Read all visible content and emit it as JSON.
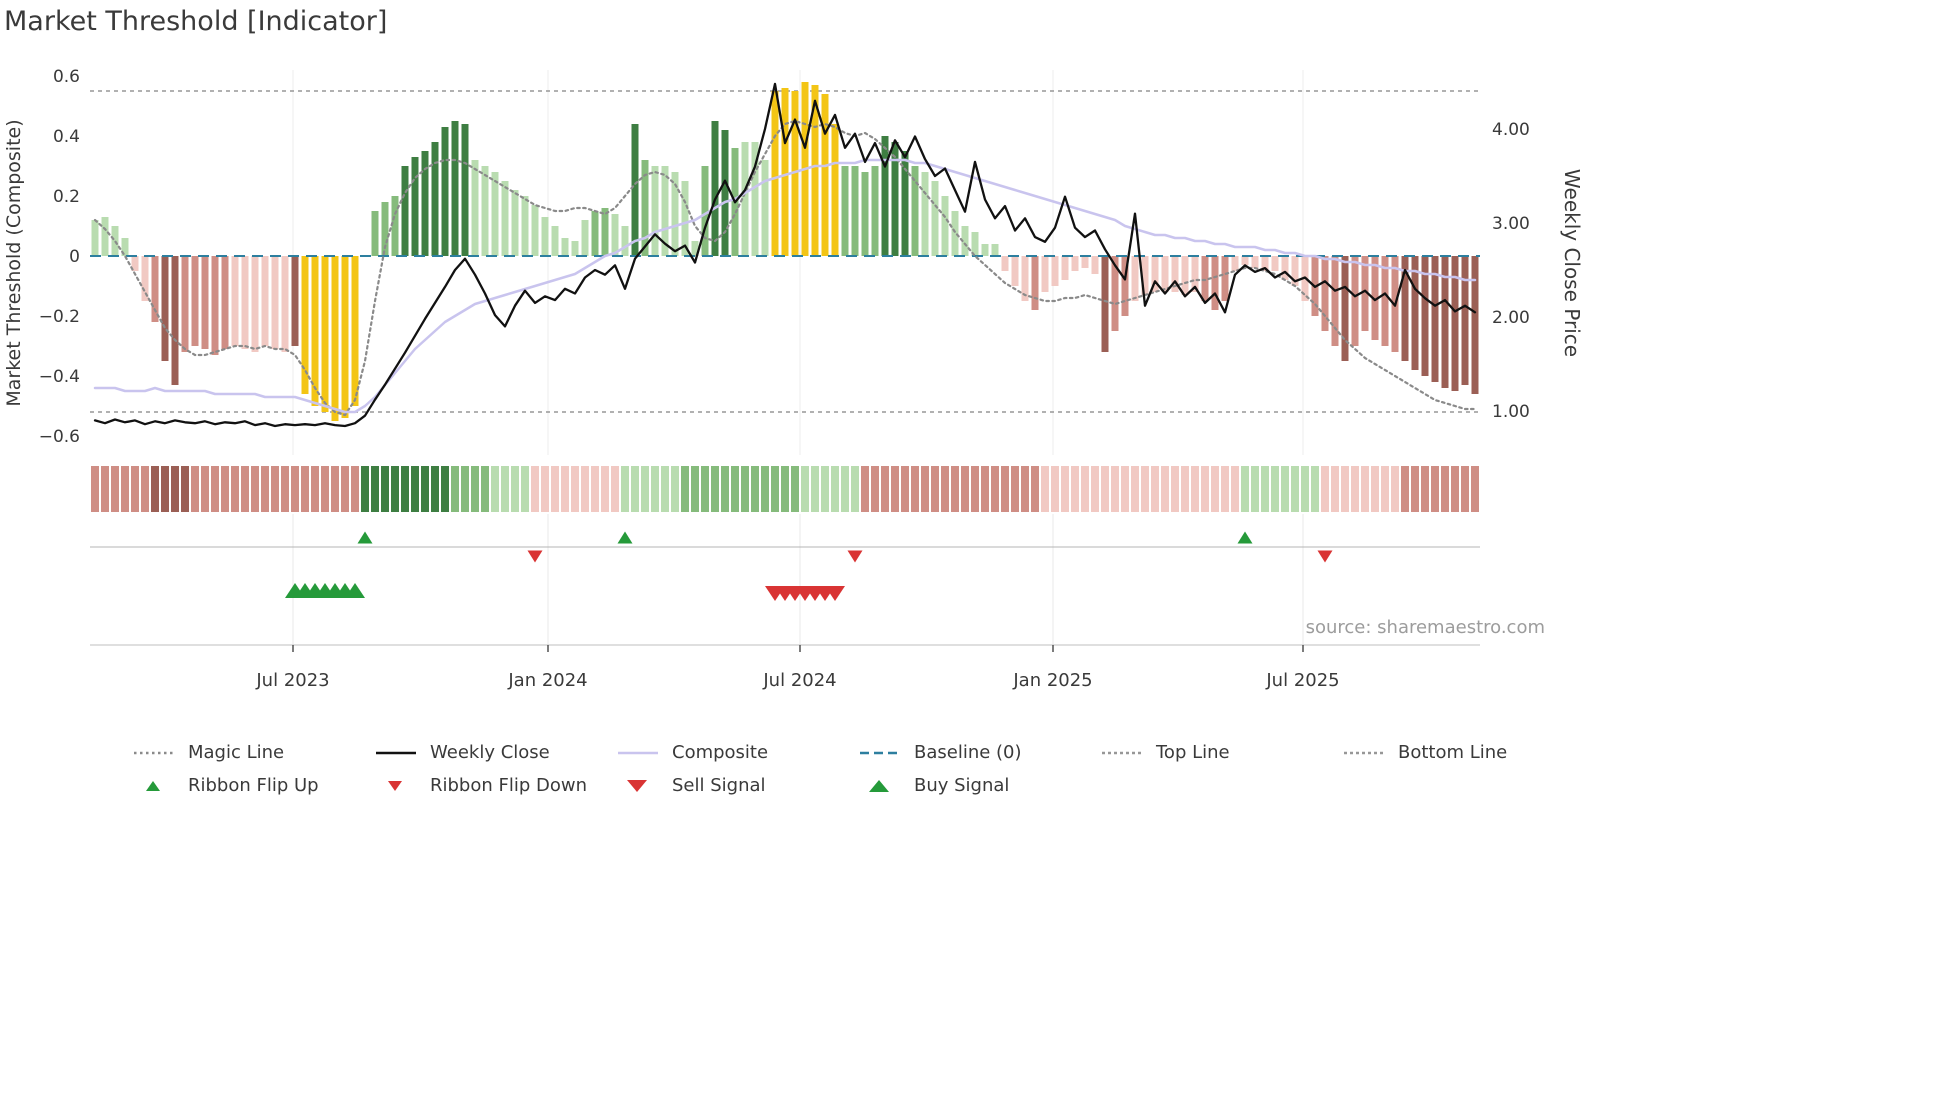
{
  "title": "Market Threshold [Indicator]",
  "source": "source: sharemaestro.com",
  "axes": {
    "left_label": "Market Threshold (Composite)",
    "right_label": "Weekly Close Price",
    "left_ticks": [
      {
        "label": "0.6",
        "value": 0.6
      },
      {
        "label": "0.4",
        "value": 0.4
      },
      {
        "label": "0.2",
        "value": 0.2
      },
      {
        "label": "0",
        "value": 0
      },
      {
        "label": "−0.2",
        "value": -0.2
      },
      {
        "label": "−0.4",
        "value": -0.4
      },
      {
        "label": "−0.6",
        "value": -0.6
      }
    ],
    "right_ticks": [
      {
        "label": "4.00",
        "value": 4.0
      },
      {
        "label": "3.00",
        "value": 3.0
      },
      {
        "label": "2.00",
        "value": 2.0
      },
      {
        "label": "1.00",
        "value": 1.0
      }
    ],
    "x_ticks": [
      {
        "label": "Jul 2023",
        "week": 19.8
      },
      {
        "label": "Jan 2024",
        "week": 45.3
      },
      {
        "label": "Jul 2024",
        "week": 70.5
      },
      {
        "label": "Jan 2025",
        "week": 95.8
      },
      {
        "label": "Jul 2025",
        "week": 120.8
      }
    ]
  },
  "chart_data": {
    "type": "bar",
    "subtype": "combo-bar-line-weekly",
    "x_unit": "week",
    "left_axis_range": [
      -0.6,
      0.6
    ],
    "right_axis_range": [
      0.8,
      4.6
    ],
    "reference_lines": {
      "baseline": 0,
      "top": 0.55,
      "bottom": -0.52
    },
    "palette": {
      "g3": "#3e7e42",
      "g2": "#86bb7c",
      "g1": "#b9dcb0",
      "r3": "#9b5f55",
      "r2": "#cf8e85",
      "r1": "#f1c9c3",
      "y": "#f3c515",
      "n": "none"
    },
    "line_colors": {
      "baseline": "#2d7f9f",
      "top_bottom": "#979797",
      "grid": "#ececec"
    },
    "signal_colors": {
      "up": "#259a3a",
      "down": "#d93434"
    },
    "bars_name": "Market Threshold (Composite)",
    "bars": [
      [
        0.12,
        "g1"
      ],
      [
        0.13,
        "g1"
      ],
      [
        0.1,
        "g1"
      ],
      [
        0.06,
        "g1"
      ],
      [
        -0.05,
        "r1"
      ],
      [
        -0.15,
        "r1"
      ],
      [
        -0.22,
        "r2"
      ],
      [
        -0.35,
        "r3"
      ],
      [
        -0.43,
        "r3"
      ],
      [
        -0.32,
        "r2"
      ],
      [
        -0.3,
        "r2"
      ],
      [
        -0.31,
        "r2"
      ],
      [
        -0.33,
        "r2"
      ],
      [
        -0.31,
        "r2"
      ],
      [
        -0.3,
        "r1"
      ],
      [
        -0.31,
        "r1"
      ],
      [
        -0.32,
        "r1"
      ],
      [
        -0.3,
        "r1"
      ],
      [
        -0.31,
        "r1"
      ],
      [
        -0.32,
        "r1"
      ],
      [
        -0.3,
        "r3"
      ],
      [
        -0.46,
        "y"
      ],
      [
        -0.5,
        "y"
      ],
      [
        -0.52,
        "y"
      ],
      [
        -0.55,
        "y"
      ],
      [
        -0.54,
        "y"
      ],
      [
        -0.5,
        "y"
      ],
      [
        0,
        "n"
      ],
      [
        0.15,
        "g2"
      ],
      [
        0.18,
        "g2"
      ],
      [
        0.2,
        "g2"
      ],
      [
        0.3,
        "g3"
      ],
      [
        0.33,
        "g3"
      ],
      [
        0.35,
        "g3"
      ],
      [
        0.38,
        "g3"
      ],
      [
        0.43,
        "g3"
      ],
      [
        0.45,
        "g3"
      ],
      [
        0.44,
        "g3"
      ],
      [
        0.32,
        "g1"
      ],
      [
        0.3,
        "g1"
      ],
      [
        0.28,
        "g1"
      ],
      [
        0.25,
        "g1"
      ],
      [
        0.22,
        "g1"
      ],
      [
        0.2,
        "g1"
      ],
      [
        0.17,
        "g1"
      ],
      [
        0.13,
        "g1"
      ],
      [
        0.1,
        "g1"
      ],
      [
        0.06,
        "g1"
      ],
      [
        0.05,
        "g1"
      ],
      [
        0.12,
        "g1"
      ],
      [
        0.15,
        "g2"
      ],
      [
        0.16,
        "g2"
      ],
      [
        0.14,
        "g1"
      ],
      [
        0.1,
        "g1"
      ],
      [
        0.44,
        "g3"
      ],
      [
        0.32,
        "g2"
      ],
      [
        0.3,
        "g1"
      ],
      [
        0.3,
        "g1"
      ],
      [
        0.28,
        "g1"
      ],
      [
        0.25,
        "g1"
      ],
      [
        0.05,
        "g1"
      ],
      [
        0.3,
        "g2"
      ],
      [
        0.45,
        "g3"
      ],
      [
        0.42,
        "g3"
      ],
      [
        0.36,
        "g2"
      ],
      [
        0.38,
        "g1"
      ],
      [
        0.38,
        "g1"
      ],
      [
        0.32,
        "g1"
      ],
      [
        0.55,
        "y"
      ],
      [
        0.56,
        "y"
      ],
      [
        0.55,
        "y"
      ],
      [
        0.58,
        "y"
      ],
      [
        0.57,
        "y"
      ],
      [
        0.54,
        "y"
      ],
      [
        0.44,
        "y"
      ],
      [
        0.3,
        "g2"
      ],
      [
        0.3,
        "g2"
      ],
      [
        0.28,
        "g2"
      ],
      [
        0.3,
        "g2"
      ],
      [
        0.4,
        "g3"
      ],
      [
        0.38,
        "g3"
      ],
      [
        0.35,
        "g3"
      ],
      [
        0.3,
        "g2"
      ],
      [
        0.28,
        "g1"
      ],
      [
        0.25,
        "g1"
      ],
      [
        0.2,
        "g1"
      ],
      [
        0.15,
        "g1"
      ],
      [
        0.1,
        "g1"
      ],
      [
        0.08,
        "g1"
      ],
      [
        0.04,
        "g1"
      ],
      [
        0.04,
        "g1"
      ],
      [
        -0.05,
        "r1"
      ],
      [
        -0.1,
        "r1"
      ],
      [
        -0.15,
        "r1"
      ],
      [
        -0.18,
        "r2"
      ],
      [
        -0.12,
        "r1"
      ],
      [
        -0.1,
        "r1"
      ],
      [
        -0.08,
        "r1"
      ],
      [
        -0.05,
        "r1"
      ],
      [
        -0.04,
        "r1"
      ],
      [
        -0.06,
        "r1"
      ],
      [
        -0.32,
        "r3"
      ],
      [
        -0.25,
        "r2"
      ],
      [
        -0.2,
        "r2"
      ],
      [
        -0.15,
        "r1"
      ],
      [
        -0.13,
        "r1"
      ],
      [
        -0.12,
        "r1"
      ],
      [
        -0.12,
        "r1"
      ],
      [
        -0.12,
        "r1"
      ],
      [
        -0.13,
        "r1"
      ],
      [
        -0.12,
        "r1"
      ],
      [
        -0.15,
        "r2"
      ],
      [
        -0.18,
        "r2"
      ],
      [
        -0.15,
        "r2"
      ],
      [
        -0.05,
        "r1"
      ],
      [
        -0.03,
        "r1"
      ],
      [
        -0.04,
        "r1"
      ],
      [
        -0.05,
        "r1"
      ],
      [
        -0.05,
        "r1"
      ],
      [
        -0.08,
        "r1"
      ],
      [
        -0.1,
        "r1"
      ],
      [
        -0.15,
        "r1"
      ],
      [
        -0.2,
        "r2"
      ],
      [
        -0.25,
        "r2"
      ],
      [
        -0.3,
        "r2"
      ],
      [
        -0.35,
        "r3"
      ],
      [
        -0.3,
        "r2"
      ],
      [
        -0.25,
        "r2"
      ],
      [
        -0.28,
        "r2"
      ],
      [
        -0.3,
        "r2"
      ],
      [
        -0.32,
        "r2"
      ],
      [
        -0.35,
        "r3"
      ],
      [
        -0.38,
        "r3"
      ],
      [
        -0.4,
        "r3"
      ],
      [
        -0.42,
        "r3"
      ],
      [
        -0.44,
        "r3"
      ],
      [
        -0.45,
        "r3"
      ],
      [
        -0.43,
        "r3"
      ],
      [
        -0.46,
        "r3"
      ]
    ],
    "series": [
      {
        "name": "Magic Line",
        "axis": "left",
        "style": "dotted",
        "color": "#8a8a8a",
        "width": 2.2,
        "values": [
          0.12,
          0.09,
          0.05,
          0.0,
          -0.06,
          -0.12,
          -0.18,
          -0.24,
          -0.28,
          -0.31,
          -0.33,
          -0.33,
          -0.32,
          -0.31,
          -0.3,
          -0.3,
          -0.31,
          -0.3,
          -0.31,
          -0.31,
          -0.33,
          -0.38,
          -0.44,
          -0.49,
          -0.52,
          -0.53,
          -0.48,
          -0.35,
          -0.15,
          0.03,
          0.14,
          0.21,
          0.26,
          0.29,
          0.31,
          0.32,
          0.32,
          0.31,
          0.29,
          0.27,
          0.25,
          0.23,
          0.21,
          0.19,
          0.17,
          0.16,
          0.15,
          0.15,
          0.16,
          0.16,
          0.15,
          0.14,
          0.16,
          0.2,
          0.24,
          0.27,
          0.28,
          0.27,
          0.24,
          0.18,
          0.1,
          0.06,
          0.05,
          0.08,
          0.14,
          0.21,
          0.28,
          0.34,
          0.4,
          0.44,
          0.45,
          0.44,
          0.43,
          0.44,
          0.43,
          0.41,
          0.4,
          0.41,
          0.39,
          0.36,
          0.33,
          0.29,
          0.25,
          0.21,
          0.17,
          0.13,
          0.08,
          0.04,
          0.0,
          -0.03,
          -0.06,
          -0.09,
          -0.11,
          -0.13,
          -0.14,
          -0.15,
          -0.15,
          -0.14,
          -0.14,
          -0.13,
          -0.14,
          -0.15,
          -0.16,
          -0.15,
          -0.14,
          -0.13,
          -0.12,
          -0.11,
          -0.1,
          -0.09,
          -0.08,
          -0.08,
          -0.07,
          -0.06,
          -0.05,
          -0.04,
          -0.04,
          -0.05,
          -0.06,
          -0.08,
          -0.1,
          -0.13,
          -0.16,
          -0.2,
          -0.24,
          -0.28,
          -0.31,
          -0.34,
          -0.36,
          -0.38,
          -0.4,
          -0.42,
          -0.44,
          -0.46,
          -0.48,
          -0.49,
          -0.5,
          -0.51,
          -0.51
        ]
      },
      {
        "name": "Composite",
        "axis": "left",
        "style": "solid",
        "color": "#c9c4ee",
        "width": 2.5,
        "values": [
          -0.44,
          -0.44,
          -0.44,
          -0.45,
          -0.45,
          -0.45,
          -0.44,
          -0.45,
          -0.45,
          -0.45,
          -0.45,
          -0.45,
          -0.46,
          -0.46,
          -0.46,
          -0.46,
          -0.46,
          -0.47,
          -0.47,
          -0.47,
          -0.47,
          -0.48,
          -0.49,
          -0.5,
          -0.51,
          -0.52,
          -0.52,
          -0.5,
          -0.47,
          -0.43,
          -0.39,
          -0.35,
          -0.31,
          -0.28,
          -0.25,
          -0.22,
          -0.2,
          -0.18,
          -0.16,
          -0.15,
          -0.14,
          -0.13,
          -0.12,
          -0.11,
          -0.1,
          -0.09,
          -0.08,
          -0.07,
          -0.06,
          -0.04,
          -0.02,
          0.0,
          0.01,
          0.03,
          0.05,
          0.06,
          0.08,
          0.09,
          0.1,
          0.11,
          0.12,
          0.14,
          0.16,
          0.18,
          0.19,
          0.21,
          0.23,
          0.25,
          0.26,
          0.27,
          0.28,
          0.29,
          0.3,
          0.3,
          0.31,
          0.31,
          0.31,
          0.32,
          0.32,
          0.32,
          0.32,
          0.32,
          0.31,
          0.31,
          0.3,
          0.29,
          0.28,
          0.27,
          0.26,
          0.25,
          0.24,
          0.23,
          0.22,
          0.21,
          0.2,
          0.19,
          0.18,
          0.17,
          0.16,
          0.15,
          0.14,
          0.13,
          0.12,
          0.1,
          0.09,
          0.08,
          0.07,
          0.07,
          0.06,
          0.06,
          0.05,
          0.05,
          0.04,
          0.04,
          0.03,
          0.03,
          0.03,
          0.02,
          0.02,
          0.01,
          0.01,
          0.0,
          0.0,
          -0.01,
          -0.01,
          -0.02,
          -0.02,
          -0.03,
          -0.03,
          -0.04,
          -0.04,
          -0.05,
          -0.05,
          -0.06,
          -0.06,
          -0.07,
          -0.07,
          -0.08,
          -0.08
        ]
      },
      {
        "name": "Weekly Close",
        "axis": "right",
        "style": "solid",
        "color": "#111111",
        "width": 2.3,
        "values": [
          0.9,
          0.87,
          0.91,
          0.88,
          0.9,
          0.86,
          0.89,
          0.87,
          0.9,
          0.88,
          0.87,
          0.89,
          0.86,
          0.88,
          0.87,
          0.89,
          0.85,
          0.87,
          0.84,
          0.86,
          0.85,
          0.86,
          0.85,
          0.87,
          0.85,
          0.84,
          0.87,
          0.95,
          1.12,
          1.28,
          1.45,
          1.62,
          1.8,
          1.98,
          2.15,
          2.32,
          2.5,
          2.62,
          2.45,
          2.25,
          2.02,
          1.9,
          2.12,
          2.28,
          2.15,
          2.22,
          2.18,
          2.3,
          2.25,
          2.42,
          2.5,
          2.45,
          2.55,
          2.3,
          2.62,
          2.75,
          2.88,
          2.78,
          2.7,
          2.76,
          2.58,
          2.95,
          3.25,
          3.45,
          3.22,
          3.35,
          3.6,
          4.0,
          4.48,
          3.85,
          4.1,
          3.8,
          4.3,
          3.95,
          4.15,
          3.8,
          3.95,
          3.65,
          3.85,
          3.6,
          3.88,
          3.7,
          3.92,
          3.68,
          3.5,
          3.58,
          3.35,
          3.12,
          3.65,
          3.25,
          3.05,
          3.18,
          2.92,
          3.05,
          2.85,
          2.8,
          2.95,
          3.28,
          2.95,
          2.85,
          2.92,
          2.72,
          2.55,
          2.4,
          3.1,
          2.12,
          2.38,
          2.25,
          2.38,
          2.22,
          2.32,
          2.15,
          2.25,
          2.05,
          2.45,
          2.55,
          2.48,
          2.52,
          2.42,
          2.48,
          2.38,
          2.42,
          2.32,
          2.38,
          2.28,
          2.32,
          2.22,
          2.28,
          2.18,
          2.25,
          2.12,
          2.5,
          2.3,
          2.2,
          2.12,
          2.18,
          2.06,
          2.12,
          2.05
        ]
      }
    ],
    "ribbon_rle": [
      [
        "r2",
        6
      ],
      [
        "r3",
        4
      ],
      [
        "r2",
        11
      ],
      [
        "r2",
        6
      ],
      [
        "g3",
        9
      ],
      [
        "g2",
        4
      ],
      [
        "g1",
        4
      ],
      [
        "r1",
        9
      ],
      [
        "g1",
        6
      ],
      [
        "g2",
        12
      ],
      [
        "g1",
        6
      ],
      [
        "r2",
        18
      ],
      [
        "r1",
        20
      ],
      [
        "g1",
        8
      ],
      [
        "r1",
        8
      ],
      [
        "r2",
        8
      ]
    ],
    "signals": {
      "ribbon_flip_up_weeks": [
        27,
        53,
        115
      ],
      "ribbon_flip_down_weeks": [
        44,
        76,
        123
      ],
      "buy_weeks": [
        20,
        21,
        22,
        23,
        24,
        25,
        26
      ],
      "sell_weeks": [
        68,
        69,
        70,
        71,
        72,
        73,
        74
      ]
    }
  },
  "legend": {
    "rows": [
      [
        {
          "label": "Magic Line",
          "marker": "line",
          "color": "#8a8a8a",
          "dash": "2.5 3.5"
        },
        {
          "label": "Weekly Close",
          "marker": "line",
          "color": "#111111",
          "dash": ""
        },
        {
          "label": "Composite",
          "marker": "line",
          "color": "#c9c4ee",
          "dash": ""
        },
        {
          "label": "Baseline (0)",
          "marker": "line",
          "color": "#2d7f9f",
          "dash": "9 5"
        },
        {
          "label": "Top Line",
          "marker": "line",
          "color": "#979797",
          "dash": "3 3"
        },
        {
          "label": "Bottom Line",
          "marker": "line",
          "color": "#979797",
          "dash": "3 3"
        }
      ],
      [
        {
          "label": "Ribbon Flip Up",
          "marker": "tri-up",
          "color": "#259a3a",
          "size": "small"
        },
        {
          "label": "Ribbon Flip Down",
          "marker": "tri-down",
          "color": "#d93434",
          "size": "small"
        },
        {
          "label": "Sell Signal",
          "marker": "tri-down",
          "color": "#d93434",
          "size": "big"
        },
        {
          "label": "Buy Signal",
          "marker": "tri-up",
          "color": "#259a3a",
          "size": "big"
        }
      ]
    ]
  }
}
